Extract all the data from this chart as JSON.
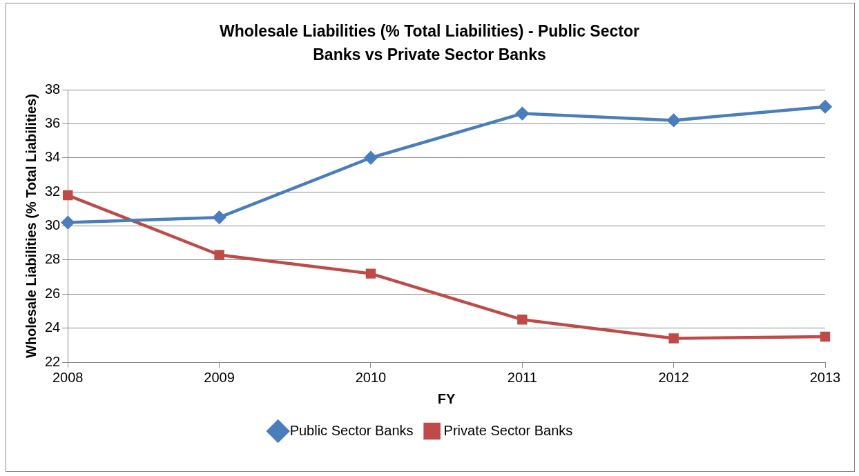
{
  "chart_data": {
    "type": "line",
    "title": "Wholesale Liabilities (% Total Liabilities) - Public Sector Banks vs Private Sector Banks",
    "xlabel": "FY",
    "ylabel": "Wholesale Liabilities (% Total Liabilities)",
    "categories": [
      "2008",
      "2009",
      "2010",
      "2011",
      "2012",
      "2013"
    ],
    "series": [
      {
        "name": "Public Sector Banks",
        "color": "#4a7ebb",
        "marker": "diamond",
        "values": [
          30.2,
          30.5,
          34.0,
          36.6,
          36.2,
          37.0
        ]
      },
      {
        "name": "Private Sector Banks",
        "color": "#be4b48",
        "marker": "square",
        "values": [
          31.8,
          28.3,
          27.2,
          24.5,
          23.4,
          23.5
        ]
      }
    ],
    "ylim": [
      22,
      38
    ],
    "yticks": [
      22,
      24,
      26,
      28,
      30,
      32,
      34,
      36,
      38
    ],
    "grid": "y",
    "legend": "bottom",
    "line_style": "solid"
  }
}
